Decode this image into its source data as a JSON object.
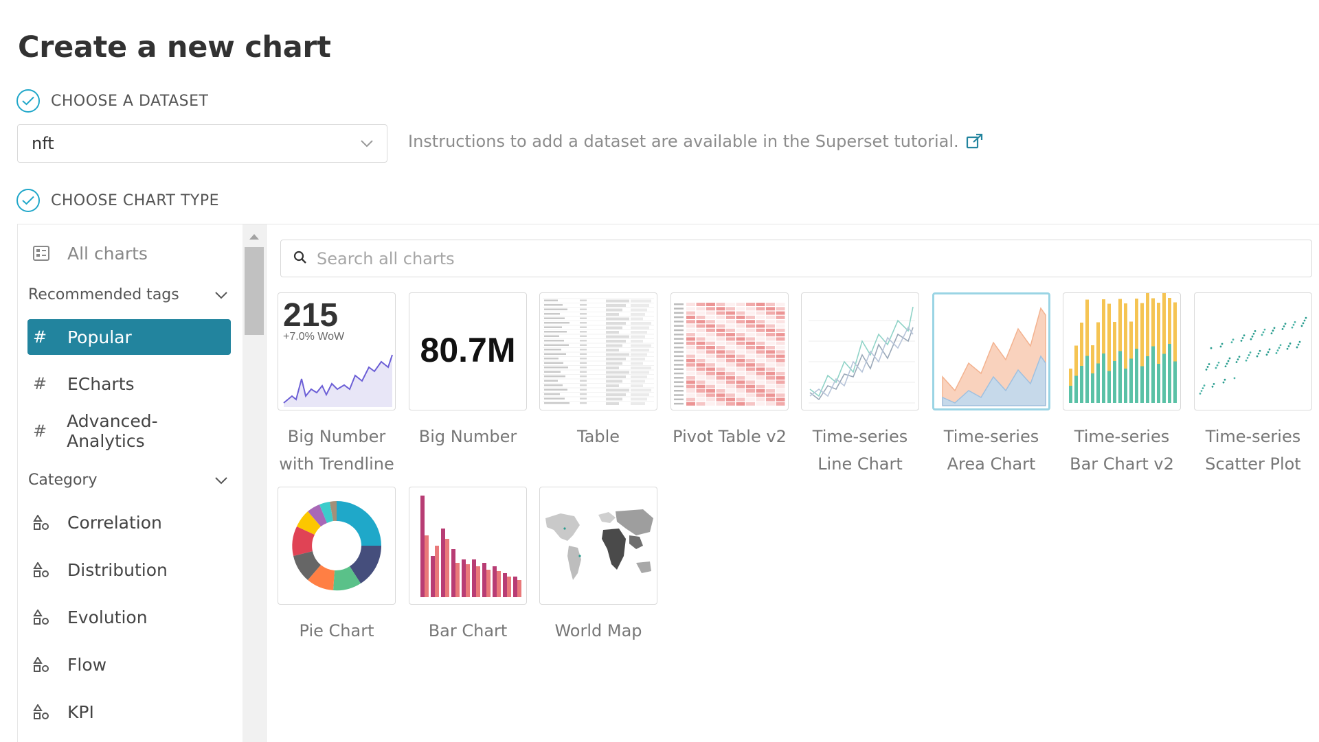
{
  "page": {
    "title": "Create a new chart"
  },
  "steps": {
    "dataset_label": "CHOOSE A DATASET",
    "chart_type_label": "CHOOSE CHART TYPE"
  },
  "dataset": {
    "value": "nft",
    "instructions": "Instructions to add a dataset are available in the Superset tutorial."
  },
  "sidebar": {
    "all_charts": "All charts",
    "recommended_header": "Recommended tags",
    "tags": [
      "Popular",
      "ECharts",
      "Advanced-Analytics"
    ],
    "category_header": "Category",
    "categories": [
      "Correlation",
      "Distribution",
      "Evolution",
      "Flow",
      "KPI"
    ]
  },
  "search": {
    "placeholder": "Search all charts"
  },
  "thumbnails": {
    "big_number_trend_value": "215",
    "big_number_trend_delta": "+7.0% WoW",
    "big_number_value": "80.7M"
  },
  "charts": [
    {
      "label": "Big Number with Trendline",
      "line1": "Big Number",
      "line2": "with Trendline"
    },
    {
      "label": "Big Number",
      "line1": "Big Number",
      "line2": ""
    },
    {
      "label": "Table",
      "line1": "Table",
      "line2": ""
    },
    {
      "label": "Pivot Table v2",
      "line1": "Pivot Table v2",
      "line2": ""
    },
    {
      "label": "Time-series Line Chart",
      "line1": "Time-series",
      "line2": "Line Chart"
    },
    {
      "label": "Time-series Area Chart",
      "line1": "Time-series",
      "line2": "Area Chart",
      "selected": true
    },
    {
      "label": "Time-series Bar Chart v2",
      "line1": "Time-series",
      "line2": "Bar Chart v2"
    },
    {
      "label": "Time-series Scatter Plot",
      "line1": "Time-series",
      "line2": "Scatter Plot"
    },
    {
      "label": "Pie Chart",
      "line1": "Pie Chart",
      "line2": ""
    },
    {
      "label": "Bar Chart",
      "line1": "Bar Chart",
      "line2": ""
    },
    {
      "label": "World Map",
      "line1": "World Map",
      "line2": ""
    }
  ],
  "colors": {
    "accent": "#22849e",
    "check": "#20a7c9",
    "selected_border": "#9ad4e4"
  }
}
